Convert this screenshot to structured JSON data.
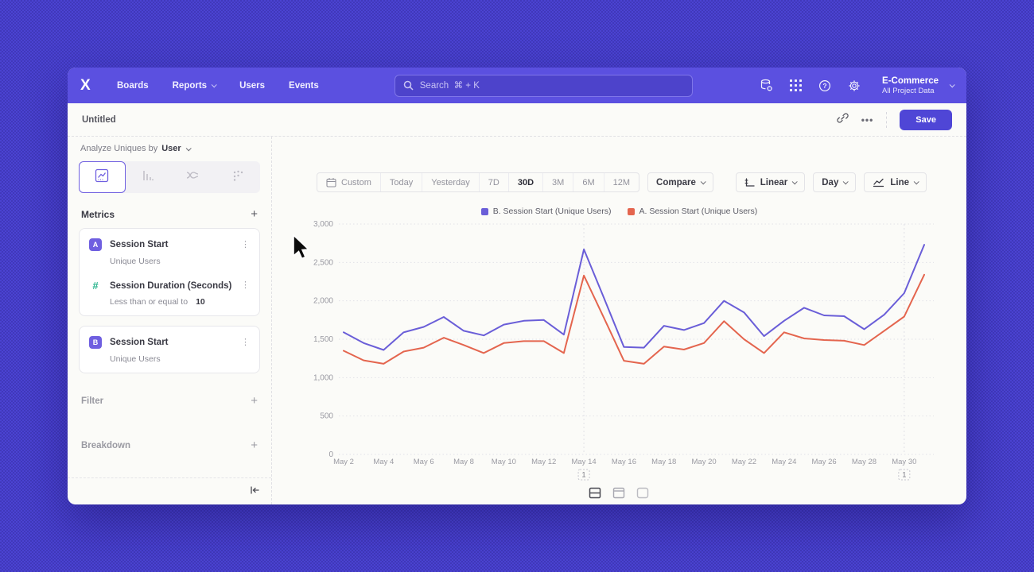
{
  "colors": {
    "accent": "#4f46d6",
    "nav": "#5b50e0",
    "background": "#4b43d2",
    "series_b": "#6a5ed8",
    "series_a": "#e4654e",
    "badge_purple": "#6f5fe0",
    "teal": "#2bb48e"
  },
  "nav": {
    "logo": "X",
    "links": [
      "Boards",
      "Reports",
      "Users",
      "Events"
    ],
    "search_placeholder": "Search  ⌘ + K",
    "project_name": "E-Commerce",
    "project_scope": "All Project Data"
  },
  "header": {
    "title": "Untitled",
    "more_label": "•••",
    "save_label": "Save"
  },
  "sidebar": {
    "analyze_prefix": "Analyze Uniques by",
    "analyze_value": "User",
    "metrics_title": "Metrics",
    "metrics": [
      {
        "badge": "A",
        "badge_color": "#6f5fe0",
        "name": "Session Start",
        "subtitle": "Unique Users"
      },
      {
        "badge": "#",
        "badge_color": "#2bb48e",
        "name": "Session Duration (Seconds)",
        "subtitle_prefix": "Less than or equal to",
        "subtitle_value": "10"
      },
      {
        "badge": "B",
        "badge_color": "#6f5fe0",
        "name": "Session Start",
        "subtitle": "Unique Users"
      }
    ],
    "filter_title": "Filter",
    "breakdown_title": "Breakdown",
    "kebab": "⋮",
    "plus": "+"
  },
  "toolbar": {
    "ranges": [
      "Custom",
      "Today",
      "Yesterday",
      "7D",
      "30D",
      "3M",
      "6M",
      "12M"
    ],
    "active_range": "30D",
    "compare_label": "Compare",
    "scale_label": "Linear",
    "interval_label": "Day",
    "chart_type_label": "Line"
  },
  "chart_data": {
    "type": "line",
    "categories": [
      "May 2",
      "May 3",
      "May 4",
      "May 5",
      "May 6",
      "May 7",
      "May 8",
      "May 9",
      "May 10",
      "May 11",
      "May 12",
      "May 13",
      "May 14",
      "May 15",
      "May 16",
      "May 17",
      "May 18",
      "May 19",
      "May 20",
      "May 21",
      "May 22",
      "May 23",
      "May 24",
      "May 25",
      "May 26",
      "May 27",
      "May 28",
      "May 29",
      "May 30",
      "May 31"
    ],
    "x_tick_step": 2,
    "series": [
      {
        "name": "B. Session Start (Unique Users)",
        "color": "#6a5ed8",
        "values": [
          1590,
          1450,
          1360,
          1590,
          1660,
          1790,
          1610,
          1550,
          1690,
          1740,
          1750,
          1560,
          2670,
          2040,
          1400,
          1390,
          1675,
          1620,
          1710,
          2000,
          1850,
          1540,
          1740,
          1910,
          1810,
          1800,
          1630,
          1820,
          2100,
          2730
        ]
      },
      {
        "name": "A. Session Start (Unique Users)",
        "color": "#e4654e",
        "values": [
          1350,
          1225,
          1180,
          1340,
          1390,
          1520,
          1425,
          1320,
          1450,
          1475,
          1475,
          1320,
          2330,
          1780,
          1220,
          1180,
          1405,
          1365,
          1450,
          1735,
          1500,
          1320,
          1590,
          1510,
          1490,
          1480,
          1425,
          1610,
          1795,
          2340
        ]
      }
    ],
    "ylim": [
      0,
      3000
    ],
    "yticks": [
      0,
      500,
      1000,
      1500,
      2000,
      2500,
      3000
    ],
    "grid": "dotted-horizontal",
    "legend_position": "top-center",
    "annotations": [
      {
        "label": "1",
        "category": "May 14"
      },
      {
        "label": "1",
        "category": "May 30"
      }
    ]
  }
}
